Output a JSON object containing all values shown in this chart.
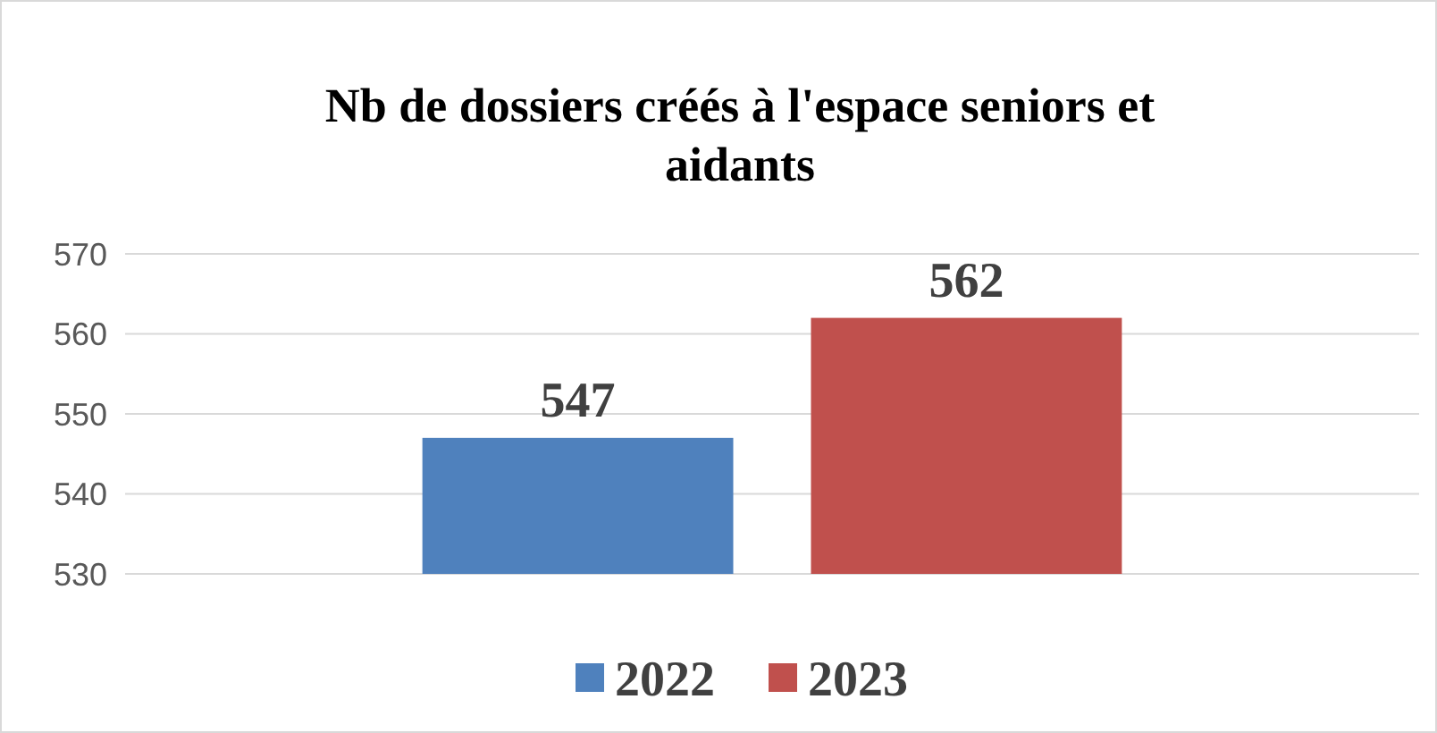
{
  "chart_data": {
    "type": "bar",
    "title": "Nb de dossiers créés à l'espace seniors et aidants",
    "categories": [
      null
    ],
    "series": [
      {
        "name": "2022",
        "color": "#4f81bd",
        "values": [
          547
        ]
      },
      {
        "name": "2023",
        "color": "#c0504d",
        "values": [
          562
        ]
      }
    ],
    "ylim": [
      530,
      570
    ],
    "yticks": [
      530,
      540,
      550,
      560,
      570
    ],
    "grid": "y",
    "data_labels": true,
    "legend": "bottom"
  }
}
